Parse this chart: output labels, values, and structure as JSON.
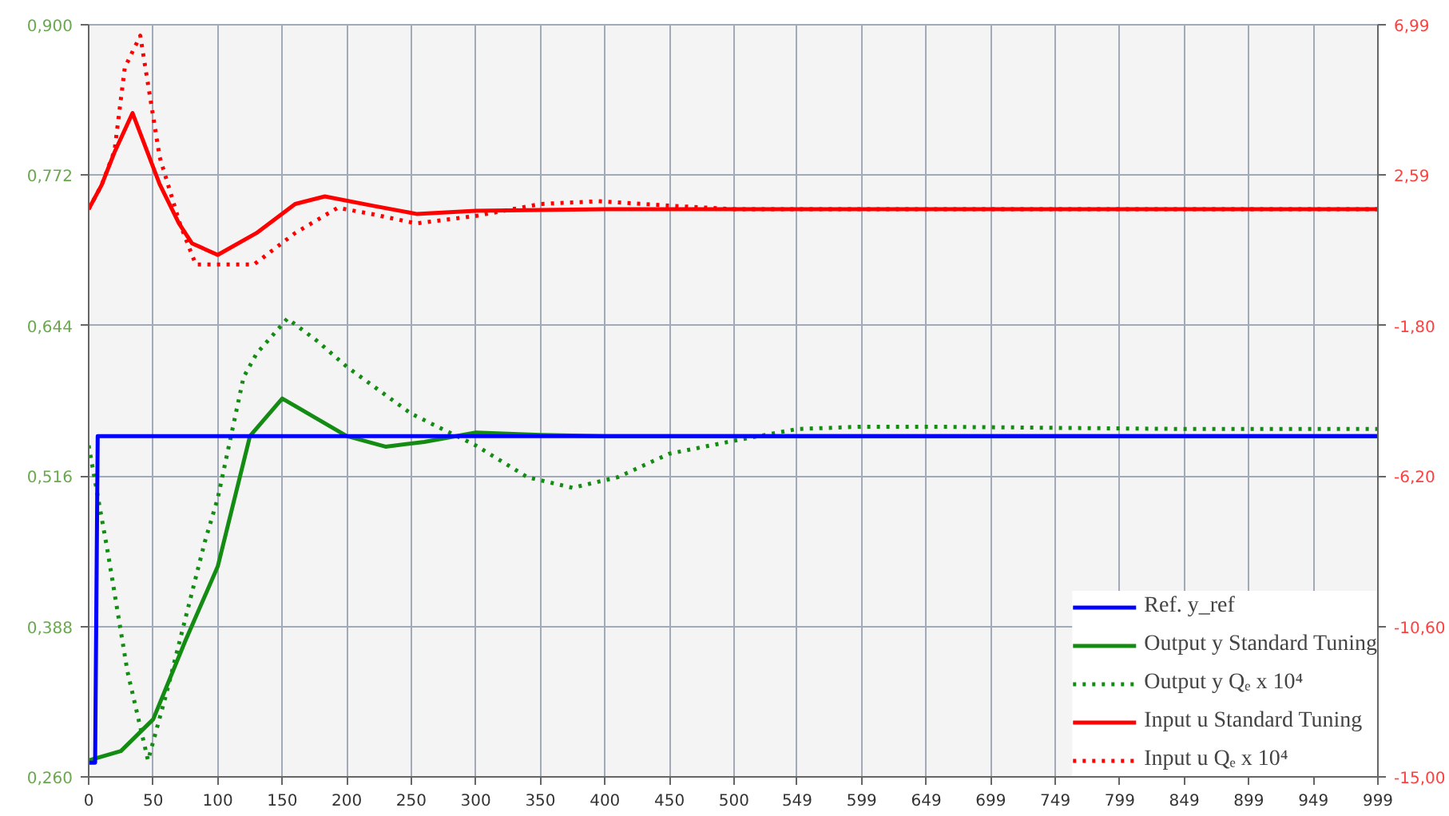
{
  "chart_data": {
    "type": "line",
    "xlim": [
      0,
      999
    ],
    "xticks": [
      0,
      50,
      100,
      150,
      200,
      250,
      300,
      350,
      400,
      450,
      500,
      549,
      599,
      649,
      699,
      749,
      799,
      849,
      899,
      949,
      999
    ],
    "ylim": [
      0.26,
      0.9
    ],
    "yticks": [
      {
        "value": 0.26,
        "label": "0,260"
      },
      {
        "value": 0.388,
        "label": "0,388"
      },
      {
        "value": 0.516,
        "label": "0,516"
      },
      {
        "value": 0.644,
        "label": "0,644"
      },
      {
        "value": 0.772,
        "label": "0,772"
      },
      {
        "value": 0.9,
        "label": "0,900"
      }
    ],
    "y2lim": [
      -15.0,
      6.99
    ],
    "y2ticks": [
      {
        "value": -15.0,
        "label": "-15,00"
      },
      {
        "value": -10.6,
        "label": "-10,60"
      },
      {
        "value": -6.2,
        "label": "-6,20"
      },
      {
        "value": -1.8,
        "label": "-1,80"
      },
      {
        "value": 2.59,
        "label": "2,59"
      },
      {
        "value": 6.99,
        "label": "6,99"
      }
    ],
    "grid": true,
    "legend": "bottom right",
    "series": [
      {
        "name": "Ref. y_ref",
        "color": "#0000ff",
        "line_style": "solid",
        "x": [
          0,
          5,
          7,
          999
        ],
        "values": [
          0.272,
          0.272,
          0.55,
          0.55
        ]
      },
      {
        "name": "Output y Standard Tuning",
        "color": "#148c14",
        "line_style": "solid",
        "x": [
          0,
          25,
          50,
          75,
          100,
          125,
          150,
          175,
          200,
          230,
          260,
          300,
          350,
          400,
          999
        ],
        "values": [
          0.274,
          0.282,
          0.309,
          0.376,
          0.439,
          0.55,
          0.582,
          0.566,
          0.55,
          0.541,
          0.545,
          0.553,
          0.551,
          0.55,
          0.55
        ]
      },
      {
        "name": "Output y Qₑ x 10⁴",
        "color": "#148c14",
        "line_style": "dotted",
        "x": [
          0,
          15,
          30,
          46,
          60,
          75,
          90,
          100,
          120,
          130,
          154,
          177,
          200,
          250,
          300,
          340,
          375,
          410,
          450,
          500,
          549,
          599,
          650,
          750,
          850,
          999
        ],
        "values": [
          0.542,
          0.45,
          0.35,
          0.274,
          0.33,
          0.395,
          0.46,
          0.497,
          0.6,
          0.62,
          0.65,
          0.631,
          0.609,
          0.569,
          0.542,
          0.515,
          0.506,
          0.515,
          0.535,
          0.546,
          0.556,
          0.558,
          0.558,
          0.557,
          0.556,
          0.556
        ]
      },
      {
        "name": "Input u Standard Tuning",
        "color": "#ff0000",
        "line_style": "solid",
        "axis": "y2",
        "x": [
          0,
          10,
          20,
          34,
          55,
          70,
          80,
          100,
          130,
          160,
          183,
          220,
          254,
          300,
          400,
          999
        ],
        "values": [
          1.6,
          2.3,
          3.26,
          4.41,
          2.33,
          1.18,
          0.6,
          0.26,
          0.9,
          1.75,
          1.97,
          1.7,
          1.46,
          1.55,
          1.6,
          1.6
        ]
      },
      {
        "name": "Input u Qₑ x 10⁴",
        "color": "#ff0000",
        "line_style": "dotted",
        "axis": "y2",
        "x": [
          0,
          10,
          20,
          28,
          40,
          55,
          71,
          83,
          128,
          160,
          193,
          220,
          254,
          300,
          350,
          395,
          450,
          500,
          999
        ],
        "values": [
          1.6,
          2.3,
          3.3,
          5.74,
          6.67,
          3.12,
          1.14,
          -0.02,
          -0.02,
          0.9,
          1.64,
          1.45,
          1.18,
          1.4,
          1.75,
          1.83,
          1.7,
          1.6,
          1.6
        ]
      }
    ]
  }
}
